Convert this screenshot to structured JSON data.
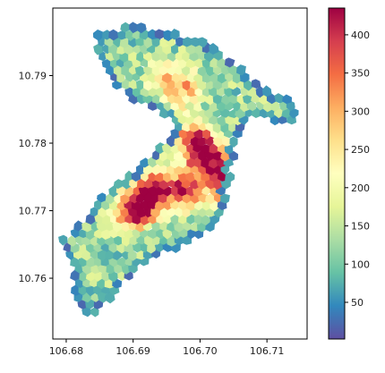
{
  "chart_data": {
    "type": "heatmap",
    "subtype": "hexbin map",
    "title": "",
    "xlabel": "",
    "ylabel": "",
    "xlim": [
      106.678,
      106.716
    ],
    "ylim": [
      10.751,
      10.8
    ],
    "x_ticks": [
      {
        "value": 106.68,
        "label": "106.68"
      },
      {
        "value": 106.69,
        "label": "106.69"
      },
      {
        "value": 106.7,
        "label": "106.70"
      },
      {
        "value": 106.71,
        "label": "106.71"
      }
    ],
    "y_ticks": [
      {
        "value": 10.76,
        "label": "10.76"
      },
      {
        "value": 10.77,
        "label": "10.77"
      },
      {
        "value": 10.78,
        "label": "10.78"
      },
      {
        "value": 10.79,
        "label": "10.79"
      }
    ],
    "colorbar": {
      "colormap": "Spectral_r",
      "range": [
        2,
        435
      ],
      "ticks": [
        {
          "value": 50,
          "label": "50"
        },
        {
          "value": 100,
          "label": "100"
        },
        {
          "value": 150,
          "label": "150"
        },
        {
          "value": 200,
          "label": "200"
        },
        {
          "value": 250,
          "label": "250"
        },
        {
          "value": 300,
          "label": "300"
        },
        {
          "value": 350,
          "label": "350"
        },
        {
          "value": 400,
          "label": "400"
        }
      ]
    },
    "hotspots": [
      {
        "x": 106.7005,
        "y": 10.7785,
        "value": 435
      },
      {
        "x": 106.6915,
        "y": 10.7712,
        "value": 400
      },
      {
        "x": 106.6978,
        "y": 10.773,
        "value": 380
      },
      {
        "x": 106.7035,
        "y": 10.7755,
        "value": 360
      },
      {
        "x": 106.6935,
        "y": 10.7735,
        "value": 340
      },
      {
        "x": 106.699,
        "y": 10.781,
        "value": 310
      },
      {
        "x": 106.6895,
        "y": 10.7695,
        "value": 300
      },
      {
        "x": 106.7045,
        "y": 10.772,
        "value": 320
      },
      {
        "x": 106.698,
        "y": 10.788,
        "value": 270
      },
      {
        "x": 106.695,
        "y": 10.7895,
        "value": 250
      }
    ],
    "base_level": 120
  }
}
